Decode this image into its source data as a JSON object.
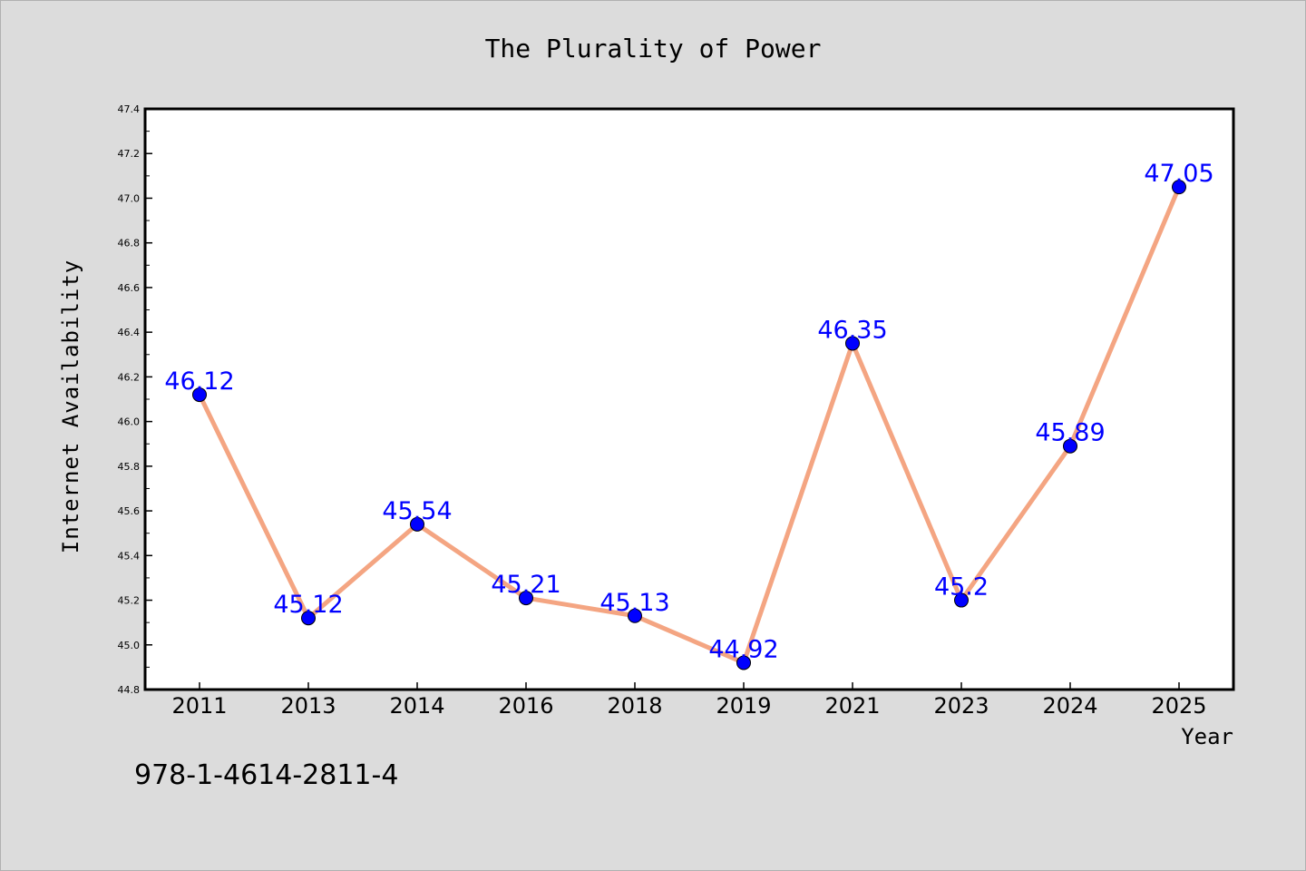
{
  "chart_data": {
    "type": "line",
    "title": "The Plurality of Power",
    "xlabel": "Year",
    "ylabel": "Internet Availability",
    "categories": [
      "2011",
      "2013",
      "2014",
      "2016",
      "2018",
      "2019",
      "2021",
      "2023",
      "2024",
      "2025"
    ],
    "series": [
      {
        "values": [
          46.12,
          45.12,
          45.54,
          45.21,
          45.13,
          44.92,
          46.35,
          45.2,
          45.89,
          47.05
        ],
        "data_labels": [
          "46.12",
          "45.12",
          "45.54",
          "45.21",
          "45.13",
          "44.92",
          "46.35",
          "45.2",
          "45.89",
          "47.05"
        ],
        "line_color": "#f4a582",
        "marker_color": "#0000ff",
        "label_color": "#0000ff"
      }
    ],
    "ylim": [
      44.8,
      47.4
    ],
    "yticks": [
      "44.8",
      "45.0",
      "45.2",
      "45.4",
      "45.6",
      "45.8",
      "46.0",
      "46.2",
      "46.4",
      "46.6",
      "46.8",
      "47.0",
      "47.2",
      "47.4"
    ],
    "grid": false,
    "legend": "none"
  },
  "footer": {
    "code": "978-1-4614-2811-4"
  },
  "colors": {
    "background": "#dcdcdc",
    "plot_background": "#ffffff",
    "axis": "#000000"
  }
}
